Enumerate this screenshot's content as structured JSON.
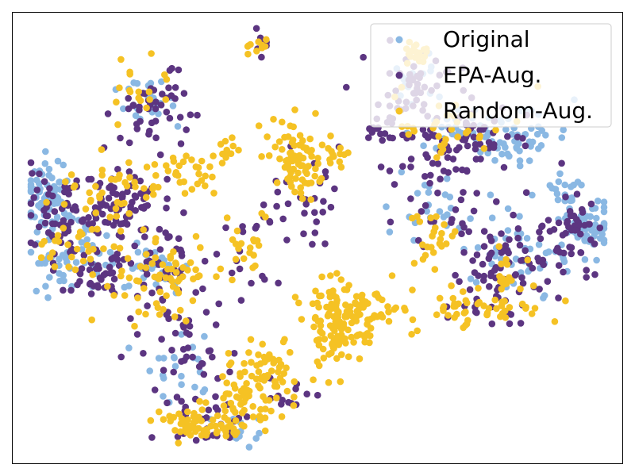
{
  "chart_data": {
    "type": "scatter",
    "title": "",
    "xlabel": "",
    "ylabel": "",
    "xlim": [
      0,
      100
    ],
    "ylim": [
      0,
      100
    ],
    "grid": false,
    "axis_ticks": false,
    "legend_position": "top-right",
    "point_shape": "circle",
    "series_note_order": "Original drawn first, then EPA-Aug., then Random-Aug. on top",
    "series": [
      {
        "name": "Original",
        "color": "#8ab8e3",
        "clusters": [
          {
            "cx": 6,
            "cy": 40,
            "sx": 2.0,
            "sy": 3.5,
            "n": 60
          },
          {
            "cx": 8,
            "cy": 52,
            "sx": 3.5,
            "sy": 4.5,
            "n": 50
          },
          {
            "cx": 20,
            "cy": 57,
            "sx": 4.5,
            "sy": 3.5,
            "n": 35
          },
          {
            "cx": 23,
            "cy": 20,
            "sx": 2.8,
            "sy": 3.5,
            "n": 25
          },
          {
            "cx": 94,
            "cy": 48,
            "sx": 2.2,
            "sy": 3.0,
            "n": 55
          },
          {
            "cx": 91,
            "cy": 40,
            "sx": 2.0,
            "sy": 2.0,
            "n": 20
          },
          {
            "cx": 83,
            "cy": 54,
            "sx": 4.5,
            "sy": 4.0,
            "n": 45
          },
          {
            "cx": 82,
            "cy": 27,
            "sx": 4.5,
            "sy": 3.0,
            "n": 55
          },
          {
            "cx": 73,
            "cy": 27,
            "sx": 4.0,
            "sy": 3.0,
            "n": 25
          },
          {
            "cx": 66,
            "cy": 14,
            "sx": 2.5,
            "sy": 3.0,
            "n": 18
          },
          {
            "cx": 68,
            "cy": 42,
            "sx": 4.5,
            "sy": 4.5,
            "n": 22
          },
          {
            "cx": 27,
            "cy": 78,
            "sx": 3.0,
            "sy": 4.0,
            "n": 22
          },
          {
            "cx": 38,
            "cy": 92,
            "sx": 2.5,
            "sy": 1.8,
            "n": 12
          }
        ]
      },
      {
        "name": "EPA-Aug.",
        "color": "#5c3581",
        "clusters": [
          {
            "cx": 9,
            "cy": 46,
            "sx": 3.5,
            "sy": 5.0,
            "n": 70
          },
          {
            "cx": 17,
            "cy": 42,
            "sx": 3.5,
            "sy": 3.0,
            "n": 75
          },
          {
            "cx": 15,
            "cy": 57,
            "sx": 4.0,
            "sy": 4.0,
            "n": 45
          },
          {
            "cx": 26,
            "cy": 57,
            "sx": 3.5,
            "sy": 5.5,
            "n": 40
          },
          {
            "cx": 28,
            "cy": 75,
            "sx": 3.5,
            "sy": 6.0,
            "n": 40
          },
          {
            "cx": 32,
            "cy": 91,
            "sx": 3.5,
            "sy": 3.0,
            "n": 30
          },
          {
            "cx": 22,
            "cy": 21,
            "sx": 3.5,
            "sy": 4.5,
            "n": 45
          },
          {
            "cx": 38,
            "cy": 55,
            "sx": 2.5,
            "sy": 5.0,
            "n": 15
          },
          {
            "cx": 47,
            "cy": 43,
            "sx": 3.0,
            "sy": 6.0,
            "n": 32
          },
          {
            "cx": 92,
            "cy": 48,
            "sx": 2.5,
            "sy": 5.0,
            "n": 45
          },
          {
            "cx": 82,
            "cy": 53,
            "sx": 4.5,
            "sy": 5.0,
            "n": 60
          },
          {
            "cx": 78,
            "cy": 64,
            "sx": 3.5,
            "sy": 3.0,
            "n": 30
          },
          {
            "cx": 73,
            "cy": 28,
            "sx": 6.5,
            "sy": 4.5,
            "n": 80
          },
          {
            "cx": 66,
            "cy": 16,
            "sx": 3.0,
            "sy": 3.5,
            "n": 40
          },
          {
            "cx": 69,
            "cy": 42,
            "sx": 4.0,
            "sy": 4.5,
            "n": 25
          },
          {
            "cx": 61,
            "cy": 26,
            "sx": 1.5,
            "sy": 1.5,
            "n": 12
          },
          {
            "cx": 41,
            "cy": 7,
            "sx": 0.8,
            "sy": 1.2,
            "n": 8
          },
          {
            "cx": 45,
            "cy": 85,
            "sx": 2.5,
            "sy": 1.8,
            "n": 12
          }
        ]
      },
      {
        "name": "Random-Aug.",
        "color": "#f5c224",
        "clusters": [
          {
            "cx": 31,
            "cy": 91,
            "sx": 3.5,
            "sy": 2.0,
            "n": 70
          },
          {
            "cx": 38,
            "cy": 85,
            "sx": 3.0,
            "sy": 3.0,
            "n": 50
          },
          {
            "cx": 42,
            "cy": 78,
            "sx": 2.5,
            "sy": 4.0,
            "n": 45
          },
          {
            "cx": 53,
            "cy": 69,
            "sx": 2.5,
            "sy": 5.0,
            "n": 110
          },
          {
            "cx": 59,
            "cy": 67,
            "sx": 3.5,
            "sy": 3.0,
            "n": 45
          },
          {
            "cx": 46,
            "cy": 32,
            "sx": 2.2,
            "sy": 4.5,
            "n": 80
          },
          {
            "cx": 28,
            "cy": 35,
            "sx": 2.5,
            "sy": 2.5,
            "n": 30
          },
          {
            "cx": 24,
            "cy": 59,
            "sx": 4.5,
            "sy": 5.0,
            "n": 70
          },
          {
            "cx": 16,
            "cy": 40,
            "sx": 4.0,
            "sy": 4.0,
            "n": 40
          },
          {
            "cx": 10,
            "cy": 52,
            "sx": 3.0,
            "sy": 4.0,
            "n": 25
          },
          {
            "cx": 38,
            "cy": 54,
            "sx": 2.5,
            "sy": 5.0,
            "n": 20
          },
          {
            "cx": 35,
            "cy": 30,
            "sx": 1.2,
            "sy": 2.0,
            "n": 12
          },
          {
            "cx": 22,
            "cy": 18,
            "sx": 2.5,
            "sy": 3.5,
            "n": 18
          },
          {
            "cx": 72,
            "cy": 25,
            "sx": 5.0,
            "sy": 4.0,
            "n": 35
          },
          {
            "cx": 69,
            "cy": 51,
            "sx": 2.0,
            "sy": 3.5,
            "n": 25
          },
          {
            "cx": 77,
            "cy": 66,
            "sx": 5.0,
            "sy": 2.5,
            "n": 45
          },
          {
            "cx": 81,
            "cy": 60,
            "sx": 2.0,
            "sy": 3.0,
            "n": 20
          },
          {
            "cx": 66,
            "cy": 9,
            "sx": 1.2,
            "sy": 1.2,
            "n": 18
          },
          {
            "cx": 40,
            "cy": 7,
            "sx": 1.0,
            "sy": 1.0,
            "n": 10
          },
          {
            "cx": 53,
            "cy": 32,
            "sx": 1.5,
            "sy": 1.5,
            "n": 10
          }
        ]
      }
    ]
  }
}
